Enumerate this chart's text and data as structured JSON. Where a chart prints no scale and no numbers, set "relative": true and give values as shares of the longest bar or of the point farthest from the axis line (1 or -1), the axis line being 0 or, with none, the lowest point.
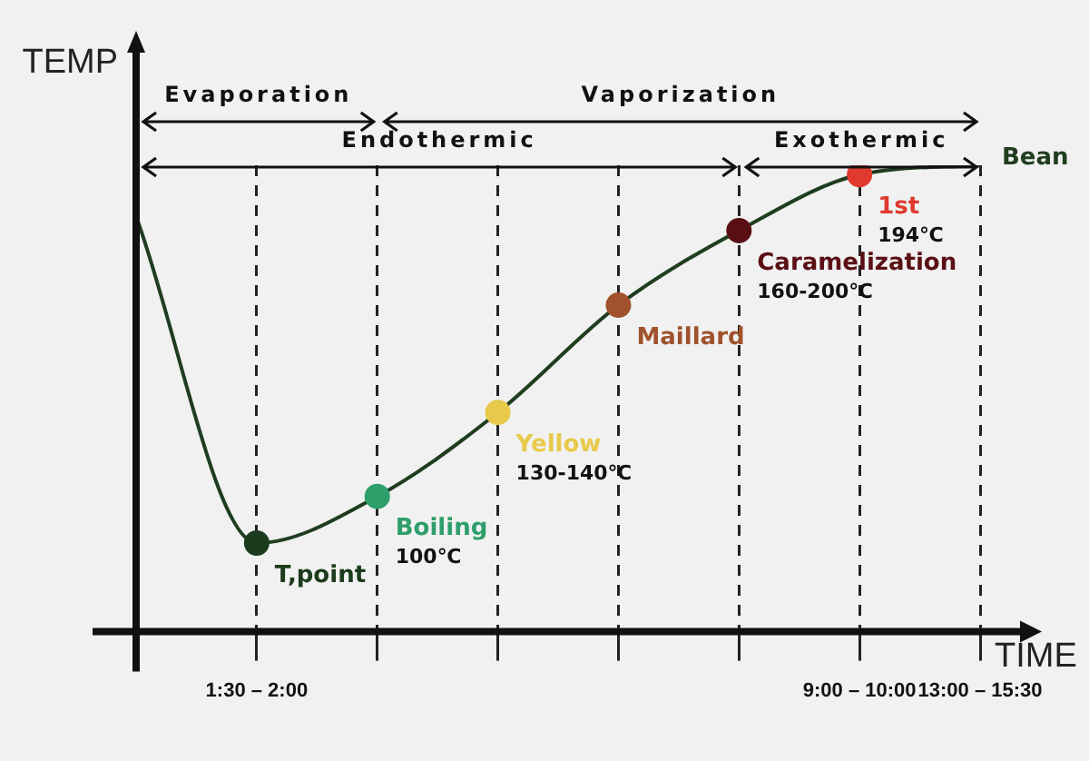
{
  "chart_data": {
    "type": "line",
    "xlabel": "TIME",
    "ylabel": "TEMP",
    "relative": true,
    "grid": "x",
    "marker": "circle",
    "categories": [
      null,
      "1:30 – 2:00",
      null,
      null,
      null,
      null,
      "9:00 – 10:00",
      "13:00 – 15:30"
    ],
    "series": [
      {
        "color": "#1f3d1f",
        "values": [
          0.89,
          0.19,
          0.29,
          0.47,
          0.7,
          0.86,
          0.98,
          1.0
        ],
        "colors": [
          null,
          "#1c3b1c",
          "#2e9e6a",
          "#e8c94a",
          "#a0522d",
          "#5a0f14",
          "#e0392f",
          null
        ]
      }
    ],
    "annotations": [
      "Evaporation",
      "Vaporization",
      "Endothermic",
      "Exothermic",
      "T,point",
      "Boiling\n100℃",
      "Yellow\n130-140℃",
      "Maillard",
      "Caramelization\n160-200℃",
      "1st\n194℃",
      "Bean"
    ]
  }
}
